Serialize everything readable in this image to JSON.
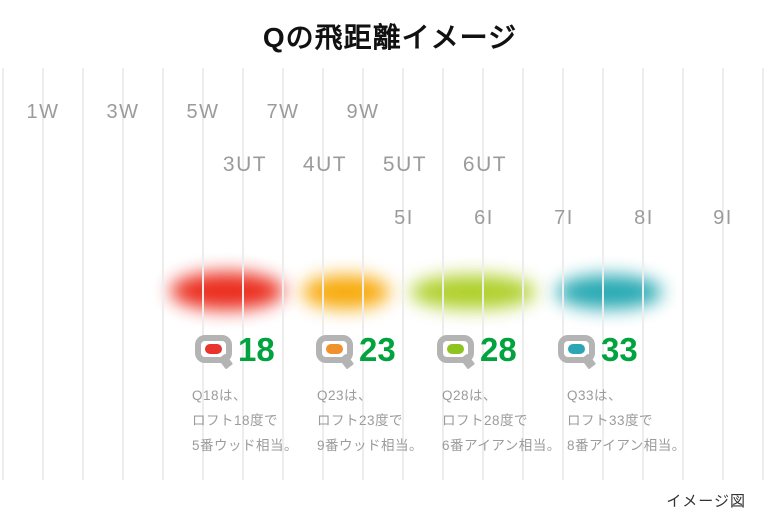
{
  "title": "Qの飛距離イメージ",
  "footer_note": "イメージ図",
  "clubs": {
    "woods": [
      "1W",
      "3W",
      "5W",
      "7W",
      "9W"
    ],
    "utilities": [
      "3UT",
      "4UT",
      "5UT",
      "6UT"
    ],
    "irons": [
      "5I",
      "6I",
      "7I",
      "8I",
      "9I"
    ]
  },
  "q_models": [
    {
      "name": "Q18",
      "number": "18",
      "badge_color": "#e8332e",
      "blob_color": "#ea2314",
      "description": "Q18は、\nロフト18度で\n5番ウッド相当。"
    },
    {
      "name": "Q23",
      "number": "23",
      "badge_color": "#f0912d",
      "blob_color": "#f7a600",
      "description": "Q23は、\nロフト23度で\n9番ウッド相当。"
    },
    {
      "name": "Q28",
      "number": "28",
      "badge_color": "#8fc31f",
      "blob_color": "#aacd1e",
      "description": "Q28は、\nロフト28度で\n6番アイアン相当。"
    },
    {
      "name": "Q33",
      "number": "33",
      "badge_color": "#2ba7b4",
      "blob_color": "#1ba4ae",
      "description": "Q33は、\nロフト33度で\n8番アイアン相当。"
    }
  ],
  "colors": {
    "number_green": "#00a33e",
    "label_gray": "#9b9b9b",
    "q_mark_gray": "#b4b4b4",
    "gridline": "#ededed"
  },
  "chart_data": {
    "type": "heatmap",
    "title": "Qの飛距離イメージ",
    "orientation": "horizontal",
    "x_axis_clubs": [
      "1W",
      "3W",
      "5W",
      "7W",
      "9W",
      "3UT",
      "4UT",
      "5UT",
      "6UT",
      "5I",
      "6I",
      "7I",
      "8I",
      "9I"
    ],
    "legend_position": "none",
    "grid": true,
    "series": [
      {
        "name": "Q18",
        "color": "#ea2314",
        "club_range": [
          "5W",
          "3UT",
          "7W"
        ],
        "loft_deg": 18,
        "equivalent": "5番ウッド"
      },
      {
        "name": "Q23",
        "color": "#f7a600",
        "club_range": [
          "7W",
          "4UT",
          "9W"
        ],
        "loft_deg": 23,
        "equivalent": "9番ウッド"
      },
      {
        "name": "Q28",
        "color": "#aacd1e",
        "club_range": [
          "5UT",
          "5I",
          "6UT",
          "6I"
        ],
        "loft_deg": 28,
        "equivalent": "6番アイアン"
      },
      {
        "name": "Q33",
        "color": "#1ba4ae",
        "club_range": [
          "7I",
          "8I"
        ],
        "loft_deg": 33,
        "equivalent": "8番アイアン"
      }
    ],
    "note": "イメージ図"
  }
}
